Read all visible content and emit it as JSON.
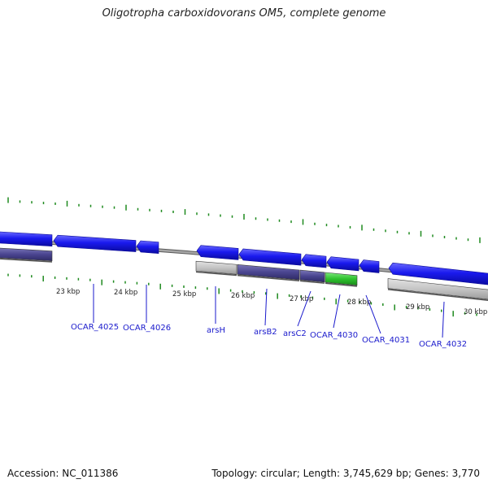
{
  "title": "Oligotropha carboxidovorans OM5, complete genome",
  "footer": {
    "accession": "Accession: NC_011386",
    "summary": "Topology: circular; Length: 3,745,629 bp; Genes: 3,770"
  },
  "scale_labels": [
    "23 kbp",
    "24 kbp",
    "25 kbp",
    "26 kbp",
    "27 kbp",
    "28 kbp",
    "29 kbp",
    "30 kbp"
  ],
  "gene_labels": [
    "OCAR_4025",
    "OCAR_4026",
    "arsH",
    "arsB2",
    "arsC2",
    "OCAR_4030",
    "OCAR_4031",
    "OCAR_4032"
  ],
  "colors": {
    "cds": "#1a1aee",
    "cds_edge": "#0c0c99",
    "backbone": "#8a8a8a",
    "tick": "#1f8a1f",
    "label": "#1a1acc",
    "feature_purple": "#4a4590",
    "feature_grey": "#c4c4c4",
    "feature_green": "#2ec22e"
  }
}
